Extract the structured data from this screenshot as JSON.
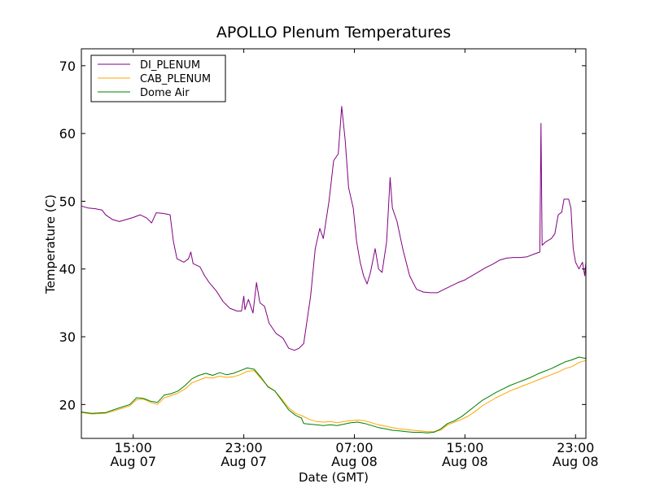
{
  "chart_data": {
    "type": "line",
    "title": "APOLLO Plenum Temperatures",
    "xlabel": "Date (GMT)",
    "ylabel": "Temperature (C)",
    "xlim": [
      "2011-08-07T11:15",
      "2011-08-08T23:45"
    ],
    "ylim": [
      15,
      72.5
    ],
    "yticks": [
      20,
      30,
      40,
      50,
      60,
      70
    ],
    "xticks": [
      {
        "time": "2011-08-07T15:00",
        "line1": "15:00",
        "line2": "Aug 07"
      },
      {
        "time": "2011-08-07T23:00",
        "line1": "23:00",
        "line2": "Aug 07"
      },
      {
        "time": "2011-08-08T07:00",
        "line1": "07:00",
        "line2": "Aug 08"
      },
      {
        "time": "2011-08-08T15:00",
        "line1": "15:00",
        "line2": "Aug 08"
      },
      {
        "time": "2011-08-08T23:00",
        "line1": "23:00",
        "line2": "Aug 08"
      }
    ],
    "legend_location": "upper left",
    "series": [
      {
        "name": "DI_PLENUM",
        "color": "#800080",
        "points": [
          [
            "2011-08-07T11:15",
            49.3
          ],
          [
            "2011-08-07T11:45",
            49.0
          ],
          [
            "2011-08-07T12:15",
            48.9
          ],
          [
            "2011-08-07T12:45",
            48.7
          ],
          [
            "2011-08-07T13:00",
            48.0
          ],
          [
            "2011-08-07T13:30",
            47.3
          ],
          [
            "2011-08-07T14:00",
            47.0
          ],
          [
            "2011-08-07T14:30",
            47.3
          ],
          [
            "2011-08-07T15:00",
            47.6
          ],
          [
            "2011-08-07T15:30",
            48.0
          ],
          [
            "2011-08-07T16:00",
            47.5
          ],
          [
            "2011-08-07T16:20",
            46.8
          ],
          [
            "2011-08-07T16:40",
            48.3
          ],
          [
            "2011-08-07T17:10",
            48.2
          ],
          [
            "2011-08-07T17:40",
            48.0
          ],
          [
            "2011-08-07T17:55",
            44.0
          ],
          [
            "2011-08-07T18:10",
            41.5
          ],
          [
            "2011-08-07T18:40",
            41.0
          ],
          [
            "2011-08-07T19:00",
            41.5
          ],
          [
            "2011-08-07T19:10",
            42.5
          ],
          [
            "2011-08-07T19:20",
            40.8
          ],
          [
            "2011-08-07T19:50",
            40.3
          ],
          [
            "2011-08-07T20:10",
            39.0
          ],
          [
            "2011-08-07T20:30",
            38.0
          ],
          [
            "2011-08-07T21:00",
            36.8
          ],
          [
            "2011-08-07T21:30",
            35.2
          ],
          [
            "2011-08-07T22:00",
            34.2
          ],
          [
            "2011-08-07T22:30",
            33.8
          ],
          [
            "2011-08-07T22:50",
            33.8
          ],
          [
            "2011-08-07T23:00",
            36.0
          ],
          [
            "2011-08-07T23:05",
            34.0
          ],
          [
            "2011-08-07T23:20",
            35.5
          ],
          [
            "2011-08-07T23:40",
            33.5
          ],
          [
            "2011-08-07T23:55",
            38.0
          ],
          [
            "2011-08-08T00:10",
            35.0
          ],
          [
            "2011-08-08T00:30",
            34.5
          ],
          [
            "2011-08-08T00:50",
            32.0
          ],
          [
            "2011-08-08T01:20",
            30.5
          ],
          [
            "2011-08-08T01:50",
            29.8
          ],
          [
            "2011-08-08T02:15",
            28.3
          ],
          [
            "2011-08-08T02:40",
            28.0
          ],
          [
            "2011-08-08T03:00",
            28.3
          ],
          [
            "2011-08-08T03:20",
            29.0
          ],
          [
            "2011-08-08T03:50",
            36.0
          ],
          [
            "2011-08-08T04:10",
            43.0
          ],
          [
            "2011-08-08T04:30",
            46.0
          ],
          [
            "2011-08-08T04:45",
            44.5
          ],
          [
            "2011-08-08T05:10",
            50.0
          ],
          [
            "2011-08-08T05:30",
            56.0
          ],
          [
            "2011-08-08T05:50",
            57.0
          ],
          [
            "2011-08-08T06:05",
            64.0
          ],
          [
            "2011-08-08T06:20",
            59.0
          ],
          [
            "2011-08-08T06:35",
            52.0
          ],
          [
            "2011-08-08T06:55",
            49.0
          ],
          [
            "2011-08-08T07:10",
            44.0
          ],
          [
            "2011-08-08T07:25",
            41.0
          ],
          [
            "2011-08-08T07:40",
            39.0
          ],
          [
            "2011-08-08T07:55",
            37.8
          ],
          [
            "2011-08-08T08:10",
            39.5
          ],
          [
            "2011-08-08T08:30",
            43.0
          ],
          [
            "2011-08-08T08:45",
            40.0
          ],
          [
            "2011-08-08T09:00",
            39.5
          ],
          [
            "2011-08-08T09:20",
            44.0
          ],
          [
            "2011-08-08T09:35",
            53.5
          ],
          [
            "2011-08-08T09:45",
            49.0
          ],
          [
            "2011-08-08T10:05",
            47.0
          ],
          [
            "2011-08-08T10:30",
            43.0
          ],
          [
            "2011-08-08T11:00",
            39.0
          ],
          [
            "2011-08-08T11:30",
            37.0
          ],
          [
            "2011-08-08T12:00",
            36.6
          ],
          [
            "2011-08-08T12:30",
            36.5
          ],
          [
            "2011-08-08T13:00",
            36.5
          ],
          [
            "2011-08-08T13:30",
            37.0
          ],
          [
            "2011-08-08T14:00",
            37.5
          ],
          [
            "2011-08-08T14:30",
            38.0
          ],
          [
            "2011-08-08T15:00",
            38.4
          ],
          [
            "2011-08-08T15:30",
            39.0
          ],
          [
            "2011-08-08T16:00",
            39.6
          ],
          [
            "2011-08-08T16:30",
            40.2
          ],
          [
            "2011-08-08T17:00",
            40.7
          ],
          [
            "2011-08-08T17:30",
            41.3
          ],
          [
            "2011-08-08T18:00",
            41.6
          ],
          [
            "2011-08-08T18:30",
            41.7
          ],
          [
            "2011-08-08T19:00",
            41.7
          ],
          [
            "2011-08-08T19:30",
            41.8
          ],
          [
            "2011-08-08T20:00",
            42.2
          ],
          [
            "2011-08-08T20:25",
            42.5
          ],
          [
            "2011-08-08T20:30",
            61.5
          ],
          [
            "2011-08-08T20:35",
            43.5
          ],
          [
            "2011-08-08T20:50",
            44.0
          ],
          [
            "2011-08-08T21:15",
            44.5
          ],
          [
            "2011-08-08T21:30",
            45.2
          ],
          [
            "2011-08-08T21:45",
            48.0
          ],
          [
            "2011-08-08T22:00",
            48.4
          ],
          [
            "2011-08-08T22:10",
            50.3
          ],
          [
            "2011-08-08T22:30",
            50.3
          ],
          [
            "2011-08-08T22:40",
            49.0
          ],
          [
            "2011-08-08T22:50",
            43.0
          ],
          [
            "2011-08-08T23:00",
            41.0
          ],
          [
            "2011-08-08T23:15",
            40.0
          ],
          [
            "2011-08-08T23:30",
            41.0
          ],
          [
            "2011-08-08T23:40",
            39.0
          ],
          [
            "2011-08-08T23:45",
            41.0
          ]
        ]
      },
      {
        "name": "CAB_PLENUM",
        "color": "#ffa500",
        "points": [
          [
            "2011-08-07T11:15",
            18.8
          ],
          [
            "2011-08-07T12:00",
            18.6
          ],
          [
            "2011-08-07T13:00",
            18.7
          ],
          [
            "2011-08-07T14:00",
            19.3
          ],
          [
            "2011-08-07T14:45",
            19.8
          ],
          [
            "2011-08-07T15:15",
            20.7
          ],
          [
            "2011-08-07T15:45",
            20.8
          ],
          [
            "2011-08-07T16:15",
            20.3
          ],
          [
            "2011-08-07T16:45",
            20.0
          ],
          [
            "2011-08-07T17:15",
            21.0
          ],
          [
            "2011-08-07T17:45",
            21.3
          ],
          [
            "2011-08-07T18:15",
            21.7
          ],
          [
            "2011-08-07T18:45",
            22.3
          ],
          [
            "2011-08-07T19:15",
            23.2
          ],
          [
            "2011-08-07T19:45",
            23.6
          ],
          [
            "2011-08-07T20:15",
            24.0
          ],
          [
            "2011-08-07T20:45",
            23.9
          ],
          [
            "2011-08-07T21:15",
            24.2
          ],
          [
            "2011-08-07T21:45",
            24.0
          ],
          [
            "2011-08-07T22:15",
            24.1
          ],
          [
            "2011-08-07T22:45",
            24.4
          ],
          [
            "2011-08-07T23:15",
            24.9
          ],
          [
            "2011-08-07T23:45",
            25.0
          ],
          [
            "2011-08-08T00:15",
            23.8
          ],
          [
            "2011-08-08T00:45",
            22.7
          ],
          [
            "2011-08-08T01:15",
            22.0
          ],
          [
            "2011-08-08T01:45",
            20.8
          ],
          [
            "2011-08-08T02:15",
            19.5
          ],
          [
            "2011-08-08T02:45",
            18.7
          ],
          [
            "2011-08-08T03:15",
            18.3
          ],
          [
            "2011-08-08T03:45",
            17.8
          ],
          [
            "2011-08-08T04:15",
            17.5
          ],
          [
            "2011-08-08T04:45",
            17.4
          ],
          [
            "2011-08-08T05:15",
            17.5
          ],
          [
            "2011-08-08T05:45",
            17.3
          ],
          [
            "2011-08-08T06:15",
            17.5
          ],
          [
            "2011-08-08T06:45",
            17.6
          ],
          [
            "2011-08-08T07:15",
            17.7
          ],
          [
            "2011-08-08T07:45",
            17.6
          ],
          [
            "2011-08-08T08:15",
            17.3
          ],
          [
            "2011-08-08T08:45",
            17.0
          ],
          [
            "2011-08-08T09:15",
            16.8
          ],
          [
            "2011-08-08T09:45",
            16.6
          ],
          [
            "2011-08-08T10:15",
            16.4
          ],
          [
            "2011-08-08T10:45",
            16.3
          ],
          [
            "2011-08-08T11:15",
            16.2
          ],
          [
            "2011-08-08T11:45",
            16.1
          ],
          [
            "2011-08-08T12:15",
            16.0
          ],
          [
            "2011-08-08T12:45",
            16.0
          ],
          [
            "2011-08-08T13:15",
            16.2
          ],
          [
            "2011-08-08T13:45",
            17.0
          ],
          [
            "2011-08-08T14:15",
            17.4
          ],
          [
            "2011-08-08T14:45",
            17.8
          ],
          [
            "2011-08-08T15:15",
            18.3
          ],
          [
            "2011-08-08T15:45",
            19.0
          ],
          [
            "2011-08-08T16:15",
            19.8
          ],
          [
            "2011-08-08T16:45",
            20.4
          ],
          [
            "2011-08-08T17:15",
            21.0
          ],
          [
            "2011-08-08T17:45",
            21.5
          ],
          [
            "2011-08-08T18:15",
            22.0
          ],
          [
            "2011-08-08T18:45",
            22.4
          ],
          [
            "2011-08-08T19:15",
            22.8
          ],
          [
            "2011-08-08T19:45",
            23.2
          ],
          [
            "2011-08-08T20:15",
            23.6
          ],
          [
            "2011-08-08T20:45",
            24.0
          ],
          [
            "2011-08-08T21:15",
            24.4
          ],
          [
            "2011-08-08T21:45",
            24.8
          ],
          [
            "2011-08-08T22:15",
            25.3
          ],
          [
            "2011-08-08T22:45",
            25.6
          ],
          [
            "2011-08-08T23:15",
            26.2
          ],
          [
            "2011-08-08T23:45",
            26.5
          ]
        ]
      },
      {
        "name": "Dome Air",
        "color": "#008000",
        "points": [
          [
            "2011-08-07T11:15",
            18.9
          ],
          [
            "2011-08-07T12:00",
            18.7
          ],
          [
            "2011-08-07T13:00",
            18.8
          ],
          [
            "2011-08-07T14:00",
            19.5
          ],
          [
            "2011-08-07T14:45",
            20.0
          ],
          [
            "2011-08-07T15:15",
            21.0
          ],
          [
            "2011-08-07T15:45",
            20.9
          ],
          [
            "2011-08-07T16:15",
            20.5
          ],
          [
            "2011-08-07T16:45",
            20.3
          ],
          [
            "2011-08-07T17:15",
            21.4
          ],
          [
            "2011-08-07T17:45",
            21.6
          ],
          [
            "2011-08-07T18:15",
            22.0
          ],
          [
            "2011-08-07T18:45",
            22.8
          ],
          [
            "2011-08-07T19:15",
            23.8
          ],
          [
            "2011-08-07T19:45",
            24.3
          ],
          [
            "2011-08-07T20:15",
            24.6
          ],
          [
            "2011-08-07T20:45",
            24.3
          ],
          [
            "2011-08-07T21:15",
            24.7
          ],
          [
            "2011-08-07T21:45",
            24.4
          ],
          [
            "2011-08-07T22:15",
            24.6
          ],
          [
            "2011-08-07T22:45",
            25.0
          ],
          [
            "2011-08-07T23:15",
            25.4
          ],
          [
            "2011-08-07T23:45",
            25.2
          ],
          [
            "2011-08-08T00:15",
            24.0
          ],
          [
            "2011-08-08T00:45",
            22.6
          ],
          [
            "2011-08-08T01:15",
            22.0
          ],
          [
            "2011-08-08T01:45",
            20.6
          ],
          [
            "2011-08-08T02:15",
            19.2
          ],
          [
            "2011-08-08T02:45",
            18.4
          ],
          [
            "2011-08-08T03:10",
            18.0
          ],
          [
            "2011-08-08T03:20",
            17.2
          ],
          [
            "2011-08-08T03:45",
            17.1
          ],
          [
            "2011-08-08T04:15",
            17.0
          ],
          [
            "2011-08-08T04:45",
            16.9
          ],
          [
            "2011-08-08T05:15",
            17.0
          ],
          [
            "2011-08-08T05:45",
            16.9
          ],
          [
            "2011-08-08T06:15",
            17.1
          ],
          [
            "2011-08-08T06:45",
            17.3
          ],
          [
            "2011-08-08T07:15",
            17.4
          ],
          [
            "2011-08-08T07:45",
            17.2
          ],
          [
            "2011-08-08T08:15",
            16.9
          ],
          [
            "2011-08-08T08:45",
            16.6
          ],
          [
            "2011-08-08T09:15",
            16.4
          ],
          [
            "2011-08-08T09:45",
            16.2
          ],
          [
            "2011-08-08T10:15",
            16.1
          ],
          [
            "2011-08-08T10:45",
            16.0
          ],
          [
            "2011-08-08T11:15",
            15.9
          ],
          [
            "2011-08-08T11:45",
            15.9
          ],
          [
            "2011-08-08T12:15",
            15.8
          ],
          [
            "2011-08-08T12:45",
            15.9
          ],
          [
            "2011-08-08T13:15",
            16.4
          ],
          [
            "2011-08-08T13:45",
            17.2
          ],
          [
            "2011-08-08T14:15",
            17.6
          ],
          [
            "2011-08-08T14:45",
            18.2
          ],
          [
            "2011-08-08T15:15",
            19.0
          ],
          [
            "2011-08-08T15:45",
            19.8
          ],
          [
            "2011-08-08T16:15",
            20.6
          ],
          [
            "2011-08-08T16:45",
            21.2
          ],
          [
            "2011-08-08T17:15",
            21.8
          ],
          [
            "2011-08-08T17:45",
            22.3
          ],
          [
            "2011-08-08T18:15",
            22.8
          ],
          [
            "2011-08-08T18:45",
            23.2
          ],
          [
            "2011-08-08T19:15",
            23.6
          ],
          [
            "2011-08-08T19:45",
            24.0
          ],
          [
            "2011-08-08T20:15",
            24.5
          ],
          [
            "2011-08-08T20:45",
            24.9
          ],
          [
            "2011-08-08T21:15",
            25.3
          ],
          [
            "2011-08-08T21:45",
            25.8
          ],
          [
            "2011-08-08T22:15",
            26.3
          ],
          [
            "2011-08-08T22:45",
            26.6
          ],
          [
            "2011-08-08T23:15",
            27.0
          ],
          [
            "2011-08-08T23:45",
            26.8
          ]
        ]
      }
    ]
  }
}
